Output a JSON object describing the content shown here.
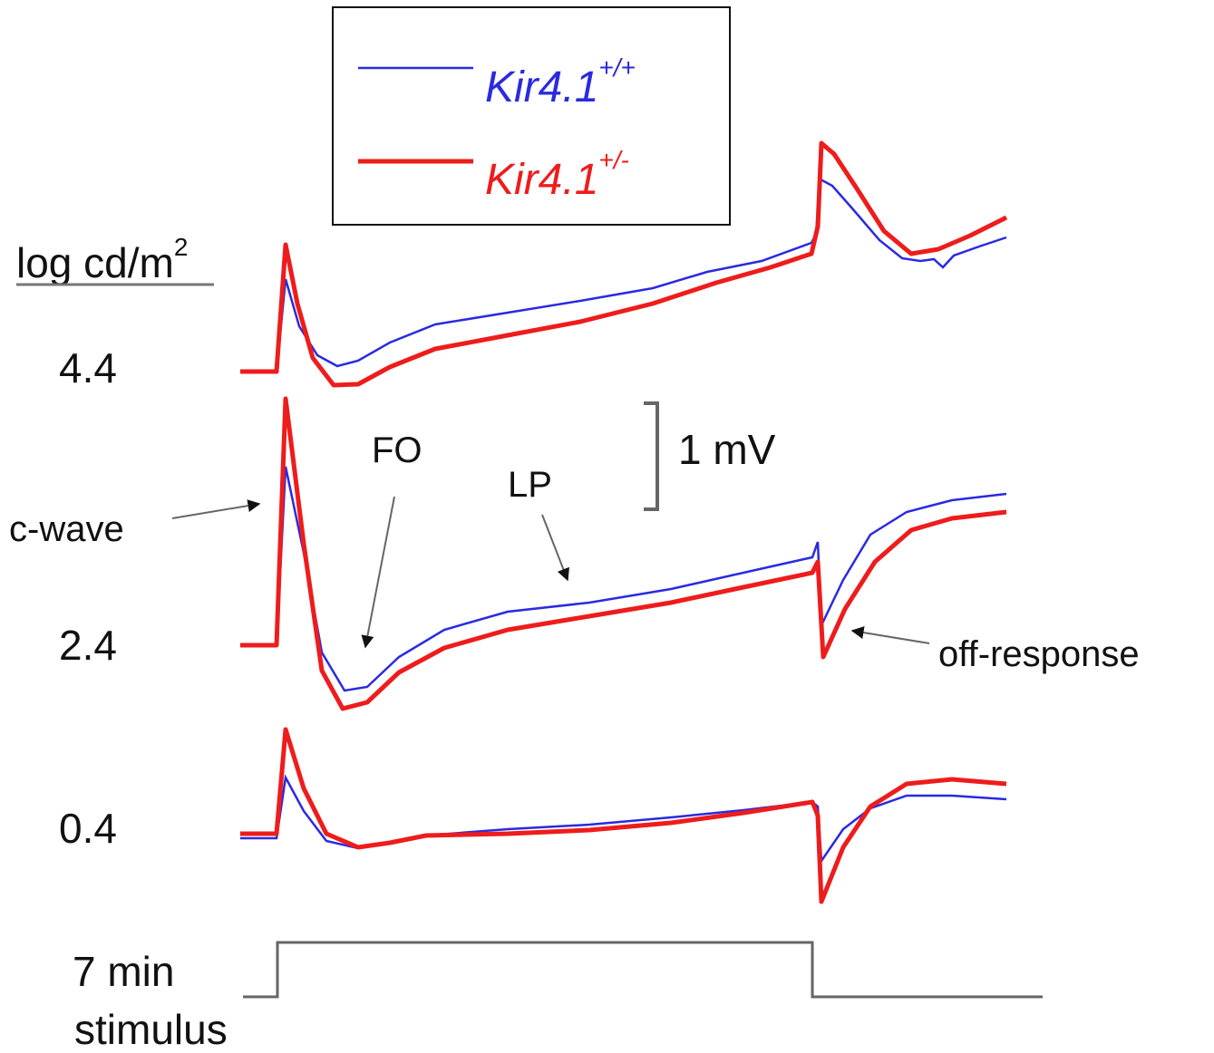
{
  "legend": [
    {
      "label": "Kir4.1",
      "superscript": "+/+"
    },
    {
      "label": "Kir4.1",
      "superscript": "+/-"
    }
  ],
  "intensity_header": {
    "text": "log cd/m",
    "superscript": "2"
  },
  "intensities": [
    "4.4",
    "2.4",
    "0.4"
  ],
  "scale_bar": "1 mV",
  "annotations": {
    "fo": "FO",
    "lp": "LP",
    "c_wave": "c-wave",
    "off_response": "off-response"
  },
  "stimulus": {
    "line1": "7 min",
    "line2": "stimulus"
  }
}
